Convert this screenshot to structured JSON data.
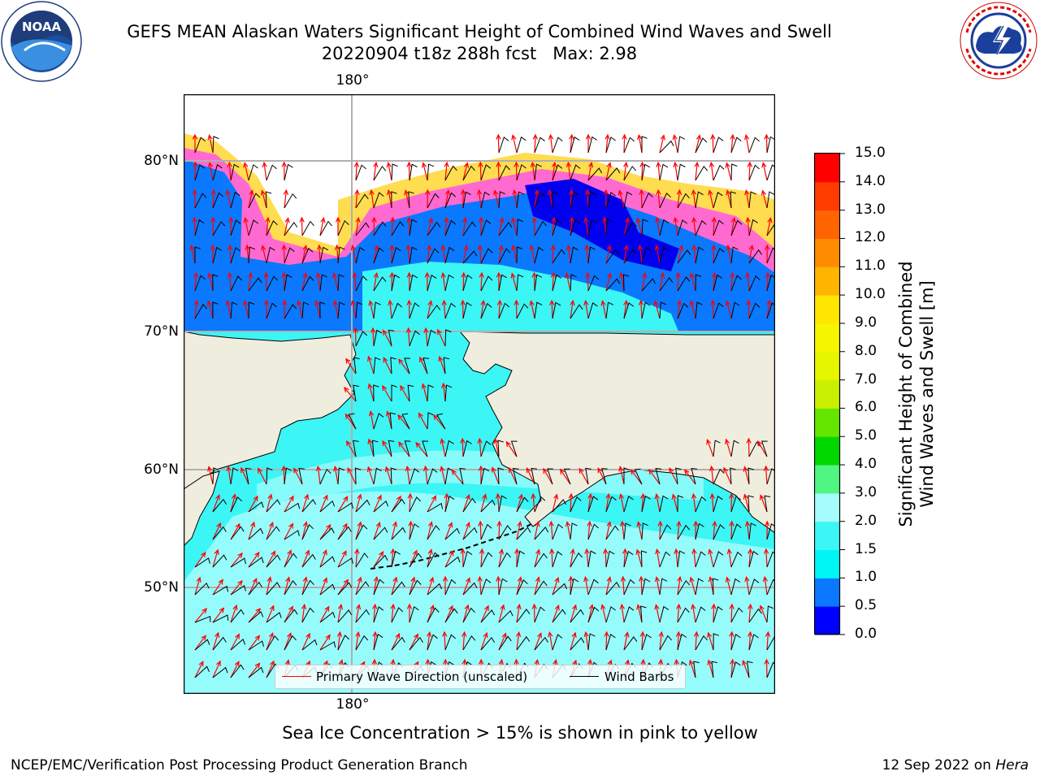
{
  "header": {
    "title": "GEFS MEAN Alaskan Waters Significant Height of Combined Wind Waves and Swell",
    "subtitle": "20220904 t18z 288h fcst   Max: 2.98"
  },
  "logos": {
    "left": {
      "icon": "noaa-logo-icon",
      "text": "NOAA",
      "ring_text": "NATIONAL OCEANIC AND ATMOSPHERIC ADMINISTRATION · U.S. DEPARTMENT OF COMMERCE"
    },
    "right": {
      "icon": "nws-logo-icon",
      "ring_text": "NATIONAL WEATHER SERVICE"
    }
  },
  "map": {
    "longitude_labels": {
      "top": "180°",
      "bottom": "180°"
    },
    "latitude_labels": [
      "80°N",
      "70°N",
      "60°N",
      "50°N"
    ],
    "colors": {
      "land": "#efedde",
      "ocean_low": "#3df5f5",
      "ocean_mid": "#a6fcfc",
      "wave_arrow": "#ff0000",
      "wind_barb": "#000000",
      "ice_pink": "#ff66cc",
      "ice_yellow": "#ffe050"
    }
  },
  "legend": {
    "items": [
      {
        "label": "Primary Wave Direction (unscaled)",
        "color": "#ff0000"
      },
      {
        "label": "Wind Barbs",
        "color": "#000000"
      }
    ]
  },
  "colorbar": {
    "title_line1": "Significant Height of Combined",
    "title_line2": "Wind Waves and Swell [m]",
    "ticks": [
      "15.0",
      "14.0",
      "13.0",
      "12.0",
      "11.0",
      "10.0",
      "9.0",
      "8.0",
      "7.0",
      "6.0",
      "5.0",
      "4.0",
      "3.0",
      "2.0",
      "1.5",
      "1.0",
      "0.5",
      "0.0"
    ],
    "bins": [
      {
        "from": 0.0,
        "to": 0.5,
        "color": "#0000ff"
      },
      {
        "from": 0.5,
        "to": 1.0,
        "color": "#0a78ff"
      },
      {
        "from": 1.0,
        "to": 1.5,
        "color": "#00f5f5"
      },
      {
        "from": 1.5,
        "to": 2.0,
        "color": "#3cf5f5"
      },
      {
        "from": 2.0,
        "to": 3.0,
        "color": "#a6fcfc"
      },
      {
        "from": 3.0,
        "to": 4.0,
        "color": "#50f582"
      },
      {
        "from": 4.0,
        "to": 5.0,
        "color": "#00d800"
      },
      {
        "from": 5.0,
        "to": 6.0,
        "color": "#64e600"
      },
      {
        "from": 6.0,
        "to": 7.0,
        "color": "#c8f000"
      },
      {
        "from": 7.0,
        "to": 8.0,
        "color": "#e6f500"
      },
      {
        "from": 8.0,
        "to": 9.0,
        "color": "#f5f500"
      },
      {
        "from": 9.0,
        "to": 10.0,
        "color": "#ffe600"
      },
      {
        "from": 10.0,
        "to": 11.0,
        "color": "#ffb400"
      },
      {
        "from": 11.0,
        "to": 12.0,
        "color": "#ff8c00"
      },
      {
        "from": 12.0,
        "to": 13.0,
        "color": "#ff6400"
      },
      {
        "from": 13.0,
        "to": 14.0,
        "color": "#ff3c00"
      },
      {
        "from": 14.0,
        "to": 15.0,
        "color": "#ff0000"
      }
    ]
  },
  "note": "Sea Ice Concentration > 15% is shown in pink to yellow",
  "footer": {
    "left": "NCEP/EMC/Verification Post Processing Product Generation Branch",
    "right_date": "12 Sep 2022 on ",
    "right_host": "Hera"
  }
}
